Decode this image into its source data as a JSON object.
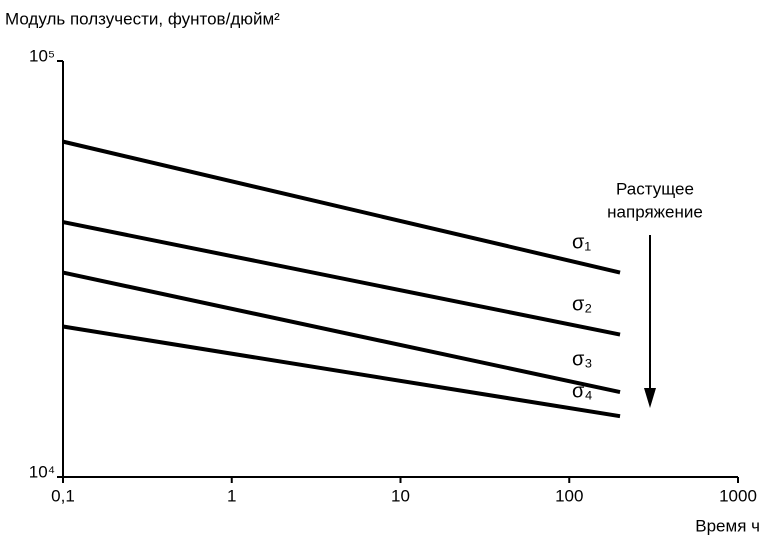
{
  "chart_data": {
    "type": "line",
    "y_axis_label": "Модуль ползучести, фунтов/дюйм²",
    "x_axis_label": "Время ч",
    "annotation": [
      "Растущее",
      "напряжение"
    ],
    "x": [
      0.1,
      200
    ],
    "series": [
      {
        "name": "σ₁",
        "color": "#000000",
        "values": [
          64000,
          31000
        ]
      },
      {
        "name": "σ₂",
        "color": "#000000",
        "values": [
          41000,
          22000
        ]
      },
      {
        "name": "σ₃",
        "color": "#000000",
        "values": [
          31000,
          16000
        ]
      },
      {
        "name": "σ₄",
        "color": "#000000",
        "values": [
          23000,
          14000
        ]
      }
    ],
    "xscale": "log",
    "yscale": "log",
    "xlim": [
      0.1,
      1000
    ],
    "ylim": [
      10000,
      100000
    ],
    "xticks": [
      {
        "value": 0.1,
        "label": "0,1"
      },
      1,
      10,
      100,
      1000
    ],
    "yticks": [
      {
        "value": 10000,
        "label": "10⁴"
      },
      {
        "value": 100000,
        "label": "10⁵"
      }
    ],
    "grid": false
  }
}
